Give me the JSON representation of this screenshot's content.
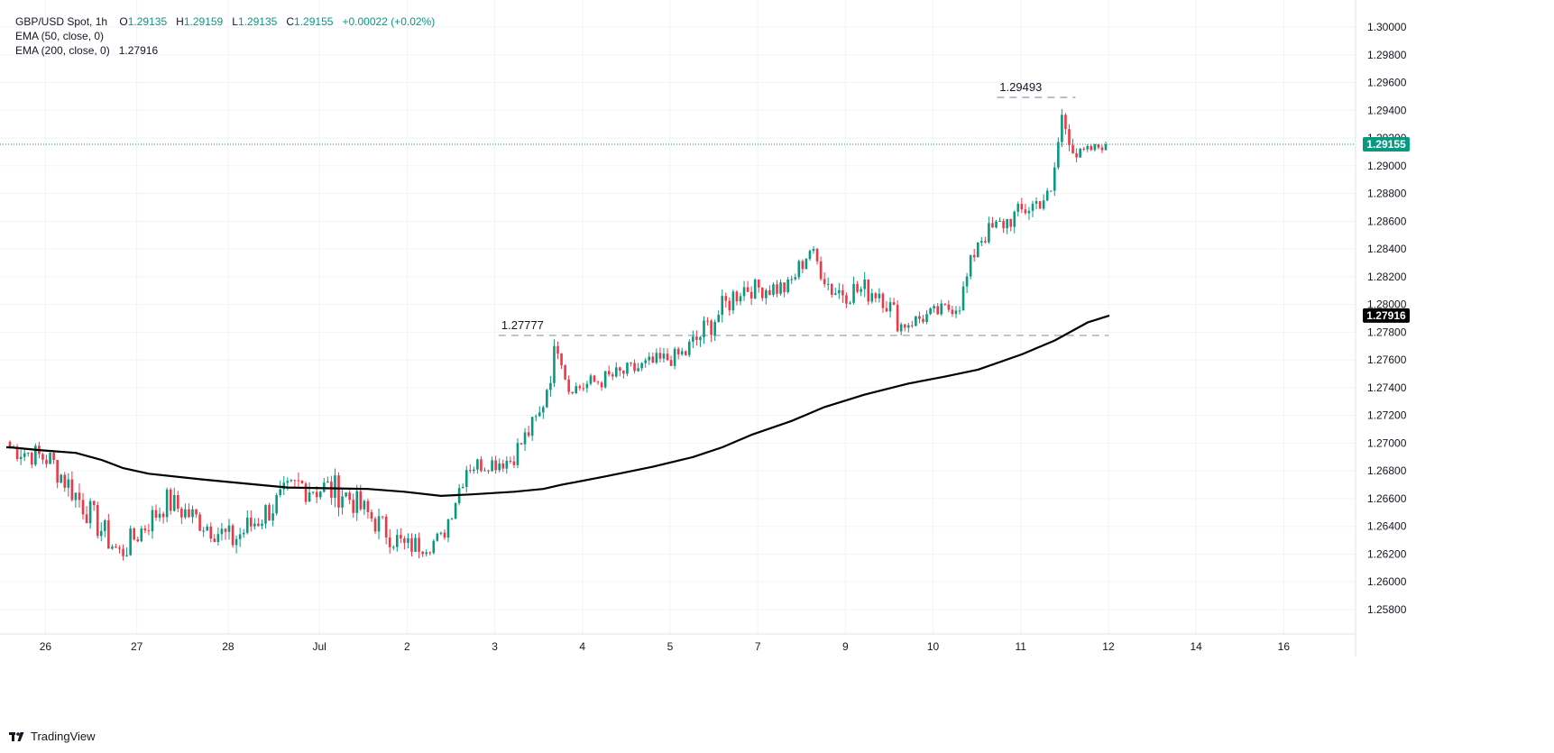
{
  "legend": {
    "symbol": "GBP/USD Spot, 1h",
    "ohlc": {
      "o_label": "O",
      "o": "1.29135",
      "h_label": "H",
      "h": "1.29159",
      "l_label": "L",
      "l": "1.29135",
      "c_label": "C",
      "c": "1.29155",
      "change": "+0.00022 (+0.02%)"
    },
    "ema50": "EMA (50, close, 0)",
    "ema200": "EMA (200, close, 0)",
    "ema200_value": "1.27916"
  },
  "brand": "TradingView",
  "colors": {
    "up": "#089981",
    "down": "#f23645",
    "ema": "#000000",
    "grid": "#f0f3fa",
    "price_line": "#089981",
    "annotation_line": "#9598a1"
  },
  "chart_data": {
    "type": "candlestick",
    "ylim": [
      1.2565,
      1.3013
    ],
    "y_ticks": [
      "1.30000",
      "1.29800",
      "1.29600",
      "1.29400",
      "1.29200",
      "1.29000",
      "1.28800",
      "1.28600",
      "1.28400",
      "1.28200",
      "1.28000",
      "1.27800",
      "1.27600",
      "1.27400",
      "1.27200",
      "1.27000",
      "1.26800",
      "1.26600",
      "1.26400",
      "1.26200",
      "1.26000",
      "1.25800"
    ],
    "x_ticks": [
      {
        "label": "26",
        "pos": 9.73
      },
      {
        "label": "27",
        "pos": 34.73
      },
      {
        "label": "28",
        "pos": 59.73
      },
      {
        "label": "Jul",
        "pos": 84.73
      },
      {
        "label": "2",
        "pos": 108.73
      },
      {
        "label": "3",
        "pos": 132.73
      },
      {
        "label": "4",
        "pos": 156.73
      },
      {
        "label": "5",
        "pos": 180.73
      },
      {
        "label": "7",
        "pos": 204.73
      },
      {
        "label": "9",
        "pos": 228.73
      },
      {
        "label": "10",
        "pos": 252.73
      },
      {
        "label": "11",
        "pos": 276.73
      },
      {
        "label": "12",
        "pos": 300.73
      },
      {
        "label": "14",
        "pos": 324.73
      },
      {
        "label": "16",
        "pos": 348.73
      }
    ],
    "last_price": 1.29155,
    "last_price_label": "1.29155",
    "ema200_last_label": "1.27916",
    "annotations": [
      {
        "label": "1.29493",
        "value": 1.29493,
        "x_from": 270.2,
        "x_to": 291.7
      },
      {
        "label": "1.27777",
        "value": 1.27777,
        "x_from": 133.8,
        "x_to": 300.8
      }
    ],
    "ema200": [
      [
        -1,
        1.2697
      ],
      [
        0,
        1.2697
      ],
      [
        8,
        1.2695
      ],
      [
        18,
        1.2693
      ],
      [
        25,
        1.2688
      ],
      [
        31,
        1.2682
      ],
      [
        38,
        1.2678
      ],
      [
        52,
        1.2674
      ],
      [
        60,
        1.2672
      ],
      [
        76,
        1.2668
      ],
      [
        98,
        1.2667
      ],
      [
        108,
        1.2665
      ],
      [
        118,
        1.2662
      ],
      [
        126,
        1.2663
      ],
      [
        138,
        1.2665
      ],
      [
        146,
        1.2667
      ],
      [
        151,
        1.267
      ],
      [
        163,
        1.2676
      ],
      [
        176,
        1.2683
      ],
      [
        187,
        1.269
      ],
      [
        195,
        1.2697
      ],
      [
        203,
        1.2706
      ],
      [
        214,
        1.2716
      ],
      [
        223,
        1.2726
      ],
      [
        234,
        1.2735
      ],
      [
        246,
        1.2743
      ],
      [
        256,
        1.2748
      ],
      [
        265,
        1.2753
      ],
      [
        277,
        1.2764
      ],
      [
        286,
        1.2774
      ],
      [
        295,
        1.2787
      ],
      [
        301,
        1.2792
      ]
    ],
    "ohlc_legs": [
      {
        "from": -1,
        "to": 11,
        "start": 1.2698,
        "end": 1.2688,
        "amp": 0.0009,
        "low": 1.2671,
        "high": 1.2702
      },
      {
        "from": 11,
        "to": 30,
        "start": 1.2688,
        "end": 1.262,
        "amp": 0.0011,
        "low": 1.2613,
        "high": 1.2695
      },
      {
        "from": 30,
        "to": 43,
        "start": 1.262,
        "end": 1.2658,
        "amp": 0.001,
        "low": 1.2613,
        "high": 1.267
      },
      {
        "from": 43,
        "to": 61,
        "start": 1.2658,
        "end": 1.263,
        "amp": 0.001,
        "low": 1.262,
        "high": 1.2668
      },
      {
        "from": 61,
        "to": 79,
        "start": 1.263,
        "end": 1.267,
        "amp": 0.0011,
        "low": 1.262,
        "high": 1.269
      },
      {
        "from": 79,
        "to": 91,
        "start": 1.267,
        "end": 1.2665,
        "amp": 0.0012,
        "low": 1.264,
        "high": 1.2712
      },
      {
        "from": 91,
        "to": 108,
        "start": 1.2665,
        "end": 1.2625,
        "amp": 0.001,
        "low": 1.2615,
        "high": 1.267
      },
      {
        "from": 108,
        "to": 118,
        "start": 1.2625,
        "end": 1.263,
        "amp": 0.0008,
        "low": 1.2615,
        "high": 1.265
      },
      {
        "from": 118,
        "to": 125,
        "start": 1.263,
        "end": 1.2683,
        "amp": 0.0008,
        "low": 1.2625,
        "high": 1.269
      },
      {
        "from": 125,
        "to": 137,
        "start": 1.2683,
        "end": 1.2688,
        "amp": 0.0007,
        "low": 1.2678,
        "high": 1.2694
      },
      {
        "from": 137,
        "to": 145,
        "start": 1.2688,
        "end": 1.272,
        "amp": 0.0008,
        "low": 1.2682,
        "high": 1.273
      },
      {
        "from": 145,
        "to": 150,
        "start": 1.272,
        "end": 1.2773,
        "amp": 0.001,
        "low": 1.2715,
        "high": 1.27777
      },
      {
        "from": 150,
        "to": 153,
        "start": 1.2773,
        "end": 1.2738,
        "amp": 0.0006,
        "low": 1.2735,
        "high": 1.2775
      },
      {
        "from": 153,
        "to": 185,
        "start": 1.2738,
        "end": 1.2765,
        "amp": 0.0007,
        "low": 1.2734,
        "high": 1.277
      },
      {
        "from": 185,
        "to": 200,
        "start": 1.2765,
        "end": 1.2812,
        "amp": 0.001,
        "low": 1.2762,
        "high": 1.2818
      },
      {
        "from": 200,
        "to": 213,
        "start": 1.2812,
        "end": 1.2812,
        "amp": 0.0008,
        "low": 1.2798,
        "high": 1.282
      },
      {
        "from": 213,
        "to": 219,
        "start": 1.2812,
        "end": 1.284,
        "amp": 0.0008,
        "low": 1.28,
        "high": 1.2846
      },
      {
        "from": 219,
        "to": 225,
        "start": 1.284,
        "end": 1.281,
        "amp": 0.0008,
        "low": 1.2805,
        "high": 1.2842
      },
      {
        "from": 225,
        "to": 238,
        "start": 1.281,
        "end": 1.281,
        "amp": 0.001,
        "low": 1.2795,
        "high": 1.2824
      },
      {
        "from": 238,
        "to": 244,
        "start": 1.281,
        "end": 1.2785,
        "amp": 0.0009,
        "low": 1.27777,
        "high": 1.282
      },
      {
        "from": 244,
        "to": 260,
        "start": 1.2785,
        "end": 1.28,
        "amp": 0.0006,
        "low": 1.2778,
        "high": 1.2808
      },
      {
        "from": 260,
        "to": 265,
        "start": 1.28,
        "end": 1.2847,
        "amp": 0.0008,
        "low": 1.2798,
        "high": 1.285
      },
      {
        "from": 265,
        "to": 285,
        "start": 1.2847,
        "end": 1.288,
        "amp": 0.0008,
        "low": 1.2842,
        "high": 1.2884
      },
      {
        "from": 285,
        "to": 288,
        "start": 1.288,
        "end": 1.2935,
        "amp": 0.0008,
        "low": 1.287,
        "high": 1.29493
      },
      {
        "from": 288,
        "to": 292,
        "start": 1.2935,
        "end": 1.2908,
        "amp": 0.0008,
        "low": 1.2899,
        "high": 1.2945
      },
      {
        "from": 292,
        "to": 300,
        "start": 1.2908,
        "end": 1.29155,
        "amp": 0.0004,
        "low": 1.2902,
        "high": 1.2918
      }
    ],
    "candle_count": 301
  }
}
